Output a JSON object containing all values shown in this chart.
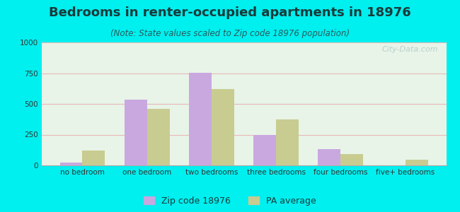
{
  "title": "Bedrooms in renter-occupied apartments in 18976",
  "subtitle": "(Note: State values scaled to Zip code 18976 population)",
  "categories": [
    "no bedroom",
    "one bedroom",
    "two bedrooms",
    "three bedrooms",
    "four bedrooms",
    "five+ bedrooms"
  ],
  "zip_values": [
    25,
    535,
    755,
    245,
    135,
    0
  ],
  "pa_values": [
    120,
    460,
    620,
    375,
    90,
    45
  ],
  "zip_color": "#c9a8e0",
  "pa_color": "#c8cc90",
  "background_outer": "#00efef",
  "ylim": [
    0,
    1000
  ],
  "yticks": [
    0,
    250,
    500,
    750,
    1000
  ],
  "legend_zip": "Zip code 18976",
  "legend_pa": "PA average",
  "bar_width": 0.35,
  "watermark": "City-Data.com",
  "title_fontsize": 13,
  "subtitle_fontsize": 8.5,
  "tick_fontsize": 7.5,
  "legend_fontsize": 9,
  "grid_color": "#e8b8b8",
  "title_color": "#1a3a3a",
  "subtitle_color": "#2a5a5a"
}
